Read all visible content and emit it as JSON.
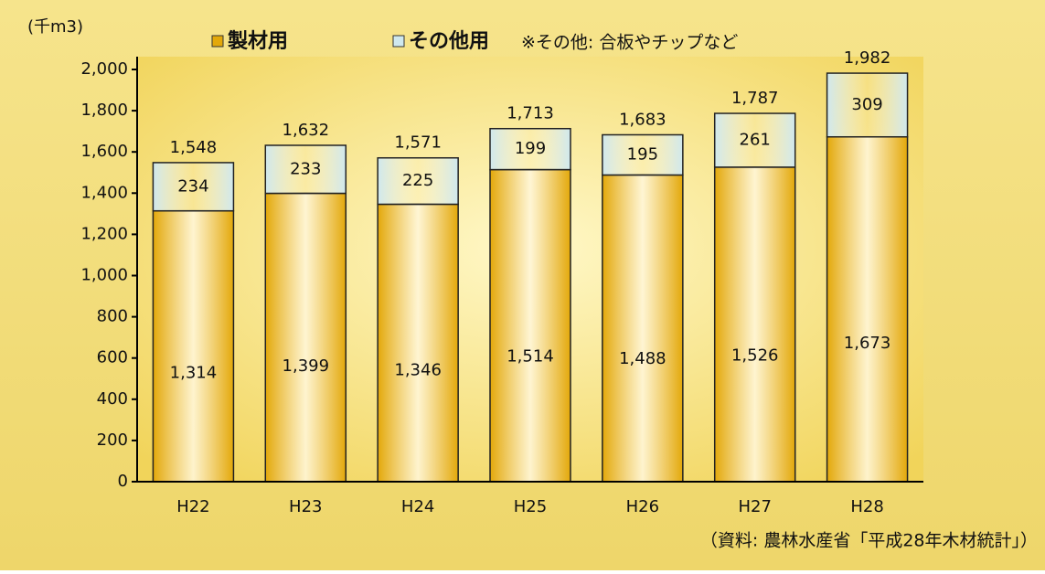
{
  "chart_data": {
    "type": "stacked-bar",
    "unit_label": "(千m3)",
    "note": "※その他: 合板やチップなど",
    "source": "（資料: 農林水産省「平成28年木材統計」）",
    "categories": [
      "H22",
      "H23",
      "H24",
      "H25",
      "H26",
      "H27",
      "H28"
    ],
    "series": [
      {
        "name": "製材用",
        "color": "#e3a80a",
        "values": [
          1314,
          1399,
          1346,
          1514,
          1488,
          1526,
          1673
        ],
        "value_labels": [
          "1,314",
          "1,399",
          "1,346",
          "1,514",
          "1,488",
          "1,526",
          "1,673"
        ]
      },
      {
        "name": "その他用",
        "color": "#cfe8ee",
        "values": [
          234,
          233,
          225,
          199,
          195,
          261,
          309
        ]
      }
    ],
    "totals": {
      "values": [
        1548,
        1632,
        1571,
        1713,
        1683,
        1787,
        1982
      ],
      "value_labels": [
        "1,548",
        "1,632",
        "1,571",
        "1,713",
        "1,683",
        "1,787",
        "1,982"
      ]
    },
    "ylim": [
      0,
      2000
    ],
    "yticks": [
      0,
      200,
      400,
      600,
      800,
      {
        "value": 1000,
        "label": "1,000"
      },
      {
        "value": 1200,
        "label": "1,200"
      },
      {
        "value": 1400,
        "label": "1,400"
      },
      {
        "value": 1600,
        "label": "1,600"
      },
      {
        "value": 1800,
        "label": "1,800"
      },
      {
        "value": 2000,
        "label": "2,000"
      }
    ],
    "grid": false,
    "legend": "top"
  }
}
